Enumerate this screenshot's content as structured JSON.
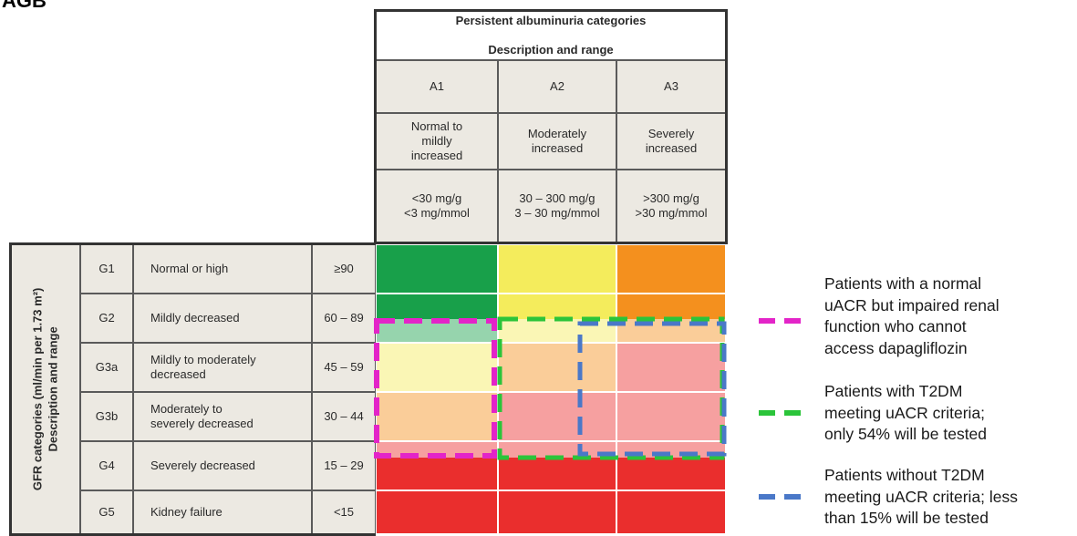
{
  "title": "AGB",
  "albuminuria_header": {
    "line1": "Persistent albuminuria categories",
    "line2": "Description and range"
  },
  "albuminuria_categories": [
    {
      "code": "A1",
      "description": "Normal to\nmildly\nincreased",
      "range": "<30 mg/g\n<3 mg/mmol"
    },
    {
      "code": "A2",
      "description": "Moderately\nincreased",
      "range": "30 – 300 mg/g\n3 – 30 mg/mmol"
    },
    {
      "code": "A3",
      "description": "Severely\nincreased",
      "range": ">300 mg/g\n>30 mg/mmol"
    }
  ],
  "gfr_axis_label": {
    "line1": "GFR categories (ml/min per 1.73 m²)",
    "line2": "Description and range"
  },
  "gfr_categories": [
    {
      "code": "G1",
      "description": "Normal or high",
      "range": "≥90"
    },
    {
      "code": "G2",
      "description": "Mildly  decreased",
      "range": "60 – 89"
    },
    {
      "code": "G3a",
      "description": "Mildly to moderately\ndecreased",
      "range": "45 – 59"
    },
    {
      "code": "G3b",
      "description": "Moderately to\nseverely decreased",
      "range": "30 – 44"
    },
    {
      "code": "G4",
      "description": "Severely decreased",
      "range": "15 – 29"
    },
    {
      "code": "G5",
      "description": "Kidney failure",
      "range": "<15"
    }
  ],
  "colors": {
    "green": "#18a04a",
    "yellow": "#f4ec5c",
    "orange": "#f4901e",
    "red": "#ea2e2d",
    "magenta": "#e324c8",
    "dash_green": "#2bc43a",
    "dash_blue": "#4a78c8"
  },
  "heatmap": [
    [
      "green",
      "yellow",
      "orange"
    ],
    [
      "green",
      "yellow",
      "orange"
    ],
    [
      "yellow",
      "orange",
      "red"
    ],
    [
      "orange",
      "red",
      "red"
    ],
    [
      "red",
      "red",
      "red"
    ],
    [
      "red",
      "red",
      "red"
    ]
  ],
  "legend": [
    {
      "color": "magenta",
      "text": "Patients with a normal\nuACR but impaired renal\nfunction who cannot\naccess dapagliflozin"
    },
    {
      "color": "dash_green",
      "text": "Patients with T2DM\nmeeting uACR criteria;\nonly 54% will be tested"
    },
    {
      "color": "dash_blue",
      "text": "Patients without T2DM\nmeeting uACR criteria; less\nthan 15% will be tested"
    }
  ]
}
